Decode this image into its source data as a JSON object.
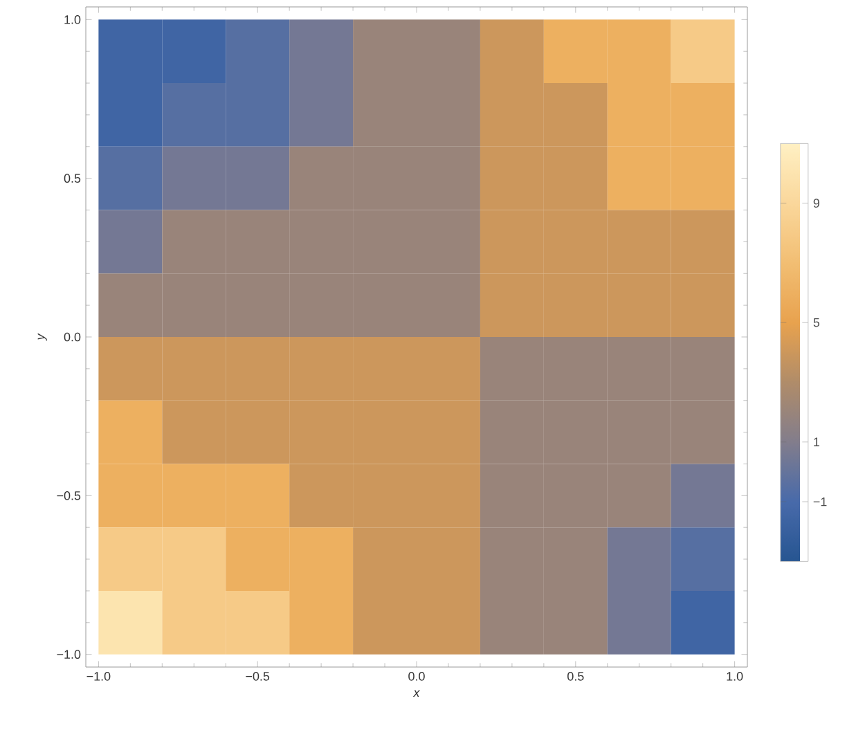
{
  "chart_data": {
    "type": "heatmap",
    "xlabel": "x",
    "ylabel": "y",
    "cells": [
      [
        -1.5,
        -1.5,
        -0.5,
        0.5,
        2,
        2,
        4,
        6,
        6,
        8
      ],
      [
        -1.5,
        -0.5,
        -0.5,
        0.5,
        2,
        2,
        4,
        4,
        6,
        6
      ],
      [
        -0.5,
        0.5,
        0.5,
        2,
        2,
        2,
        4,
        4,
        6,
        6
      ],
      [
        0.5,
        2,
        2,
        2,
        2,
        2,
        4,
        4,
        4,
        4
      ],
      [
        2,
        2,
        2,
        2,
        2,
        2,
        4,
        4,
        4,
        4
      ],
      [
        4,
        4,
        4,
        4,
        4,
        4,
        2,
        2,
        2,
        2
      ],
      [
        6,
        4,
        4,
        4,
        4,
        4,
        2,
        2,
        2,
        2
      ],
      [
        6,
        6,
        6,
        4,
        4,
        4,
        2,
        2,
        2,
        0.5
      ],
      [
        8,
        8,
        6,
        6,
        4,
        4,
        2,
        2,
        0.5,
        -0.5
      ],
      [
        10,
        8,
        8,
        6,
        4,
        4,
        2,
        2,
        0.5,
        -1.5
      ]
    ],
    "xlim": [
      -1.04,
      1.04
    ],
    "ylim": [
      -1.04,
      1.04
    ],
    "xticks": [
      {
        "value": -1,
        "label": "−1.0"
      },
      {
        "value": -0.5,
        "label": "−0.5"
      },
      {
        "value": 0,
        "label": "0.0"
      },
      {
        "value": 0.5,
        "label": "0.5"
      },
      {
        "value": 1,
        "label": "1.0"
      }
    ],
    "yticks": [
      {
        "value": -1,
        "label": "−1.0"
      },
      {
        "value": -0.5,
        "label": "−0.5"
      },
      {
        "value": 0,
        "label": "0.0"
      },
      {
        "value": 0.5,
        "label": "0.5"
      },
      {
        "value": 1,
        "label": "1.0"
      }
    ],
    "clim": [
      -3,
      11
    ],
    "cticks": [
      {
        "value": -1,
        "label": "−1"
      },
      1,
      5,
      9
    ]
  }
}
